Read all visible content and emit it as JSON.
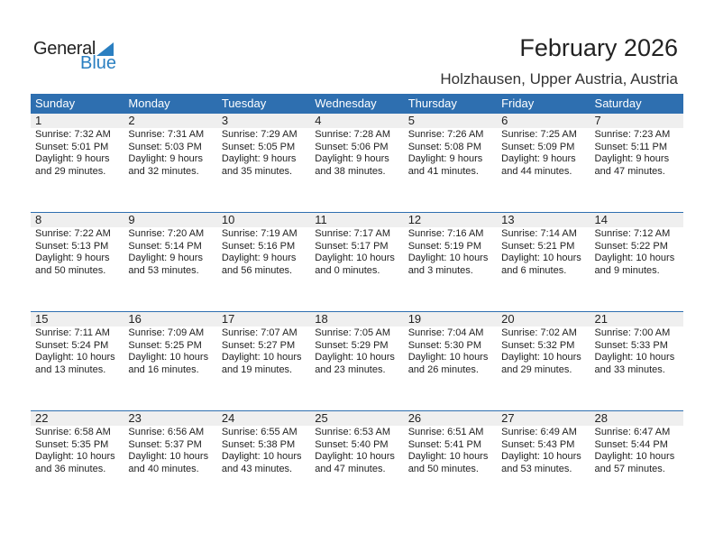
{
  "logo": {
    "general": "General",
    "blue": "Blue"
  },
  "title": "February 2026",
  "subtitle": "Holzhausen, Upper Austria, Austria",
  "colors": {
    "header": "#2e6fb0",
    "logo_blue": "#2a7fc1",
    "day_strip": "#efefef"
  },
  "weekdays": [
    "Sunday",
    "Monday",
    "Tuesday",
    "Wednesday",
    "Thursday",
    "Friday",
    "Saturday"
  ],
  "weeks": [
    [
      {
        "day": "1",
        "sunrise": "Sunrise: 7:32 AM",
        "sunset": "Sunset: 5:01 PM",
        "daylight1": "Daylight: 9 hours",
        "daylight2": "and 29 minutes."
      },
      {
        "day": "2",
        "sunrise": "Sunrise: 7:31 AM",
        "sunset": "Sunset: 5:03 PM",
        "daylight1": "Daylight: 9 hours",
        "daylight2": "and 32 minutes."
      },
      {
        "day": "3",
        "sunrise": "Sunrise: 7:29 AM",
        "sunset": "Sunset: 5:05 PM",
        "daylight1": "Daylight: 9 hours",
        "daylight2": "and 35 minutes."
      },
      {
        "day": "4",
        "sunrise": "Sunrise: 7:28 AM",
        "sunset": "Sunset: 5:06 PM",
        "daylight1": "Daylight: 9 hours",
        "daylight2": "and 38 minutes."
      },
      {
        "day": "5",
        "sunrise": "Sunrise: 7:26 AM",
        "sunset": "Sunset: 5:08 PM",
        "daylight1": "Daylight: 9 hours",
        "daylight2": "and 41 minutes."
      },
      {
        "day": "6",
        "sunrise": "Sunrise: 7:25 AM",
        "sunset": "Sunset: 5:09 PM",
        "daylight1": "Daylight: 9 hours",
        "daylight2": "and 44 minutes."
      },
      {
        "day": "7",
        "sunrise": "Sunrise: 7:23 AM",
        "sunset": "Sunset: 5:11 PM",
        "daylight1": "Daylight: 9 hours",
        "daylight2": "and 47 minutes."
      }
    ],
    [
      {
        "day": "8",
        "sunrise": "Sunrise: 7:22 AM",
        "sunset": "Sunset: 5:13 PM",
        "daylight1": "Daylight: 9 hours",
        "daylight2": "and 50 minutes."
      },
      {
        "day": "9",
        "sunrise": "Sunrise: 7:20 AM",
        "sunset": "Sunset: 5:14 PM",
        "daylight1": "Daylight: 9 hours",
        "daylight2": "and 53 minutes."
      },
      {
        "day": "10",
        "sunrise": "Sunrise: 7:19 AM",
        "sunset": "Sunset: 5:16 PM",
        "daylight1": "Daylight: 9 hours",
        "daylight2": "and 56 minutes."
      },
      {
        "day": "11",
        "sunrise": "Sunrise: 7:17 AM",
        "sunset": "Sunset: 5:17 PM",
        "daylight1": "Daylight: 10 hours",
        "daylight2": "and 0 minutes."
      },
      {
        "day": "12",
        "sunrise": "Sunrise: 7:16 AM",
        "sunset": "Sunset: 5:19 PM",
        "daylight1": "Daylight: 10 hours",
        "daylight2": "and 3 minutes."
      },
      {
        "day": "13",
        "sunrise": "Sunrise: 7:14 AM",
        "sunset": "Sunset: 5:21 PM",
        "daylight1": "Daylight: 10 hours",
        "daylight2": "and 6 minutes."
      },
      {
        "day": "14",
        "sunrise": "Sunrise: 7:12 AM",
        "sunset": "Sunset: 5:22 PM",
        "daylight1": "Daylight: 10 hours",
        "daylight2": "and 9 minutes."
      }
    ],
    [
      {
        "day": "15",
        "sunrise": "Sunrise: 7:11 AM",
        "sunset": "Sunset: 5:24 PM",
        "daylight1": "Daylight: 10 hours",
        "daylight2": "and 13 minutes."
      },
      {
        "day": "16",
        "sunrise": "Sunrise: 7:09 AM",
        "sunset": "Sunset: 5:25 PM",
        "daylight1": "Daylight: 10 hours",
        "daylight2": "and 16 minutes."
      },
      {
        "day": "17",
        "sunrise": "Sunrise: 7:07 AM",
        "sunset": "Sunset: 5:27 PM",
        "daylight1": "Daylight: 10 hours",
        "daylight2": "and 19 minutes."
      },
      {
        "day": "18",
        "sunrise": "Sunrise: 7:05 AM",
        "sunset": "Sunset: 5:29 PM",
        "daylight1": "Daylight: 10 hours",
        "daylight2": "and 23 minutes."
      },
      {
        "day": "19",
        "sunrise": "Sunrise: 7:04 AM",
        "sunset": "Sunset: 5:30 PM",
        "daylight1": "Daylight: 10 hours",
        "daylight2": "and 26 minutes."
      },
      {
        "day": "20",
        "sunrise": "Sunrise: 7:02 AM",
        "sunset": "Sunset: 5:32 PM",
        "daylight1": "Daylight: 10 hours",
        "daylight2": "and 29 minutes."
      },
      {
        "day": "21",
        "sunrise": "Sunrise: 7:00 AM",
        "sunset": "Sunset: 5:33 PM",
        "daylight1": "Daylight: 10 hours",
        "daylight2": "and 33 minutes."
      }
    ],
    [
      {
        "day": "22",
        "sunrise": "Sunrise: 6:58 AM",
        "sunset": "Sunset: 5:35 PM",
        "daylight1": "Daylight: 10 hours",
        "daylight2": "and 36 minutes."
      },
      {
        "day": "23",
        "sunrise": "Sunrise: 6:56 AM",
        "sunset": "Sunset: 5:37 PM",
        "daylight1": "Daylight: 10 hours",
        "daylight2": "and 40 minutes."
      },
      {
        "day": "24",
        "sunrise": "Sunrise: 6:55 AM",
        "sunset": "Sunset: 5:38 PM",
        "daylight1": "Daylight: 10 hours",
        "daylight2": "and 43 minutes."
      },
      {
        "day": "25",
        "sunrise": "Sunrise: 6:53 AM",
        "sunset": "Sunset: 5:40 PM",
        "daylight1": "Daylight: 10 hours",
        "daylight2": "and 47 minutes."
      },
      {
        "day": "26",
        "sunrise": "Sunrise: 6:51 AM",
        "sunset": "Sunset: 5:41 PM",
        "daylight1": "Daylight: 10 hours",
        "daylight2": "and 50 minutes."
      },
      {
        "day": "27",
        "sunrise": "Sunrise: 6:49 AM",
        "sunset": "Sunset: 5:43 PM",
        "daylight1": "Daylight: 10 hours",
        "daylight2": "and 53 minutes."
      },
      {
        "day": "28",
        "sunrise": "Sunrise: 6:47 AM",
        "sunset": "Sunset: 5:44 PM",
        "daylight1": "Daylight: 10 hours",
        "daylight2": "and 57 minutes."
      }
    ]
  ]
}
